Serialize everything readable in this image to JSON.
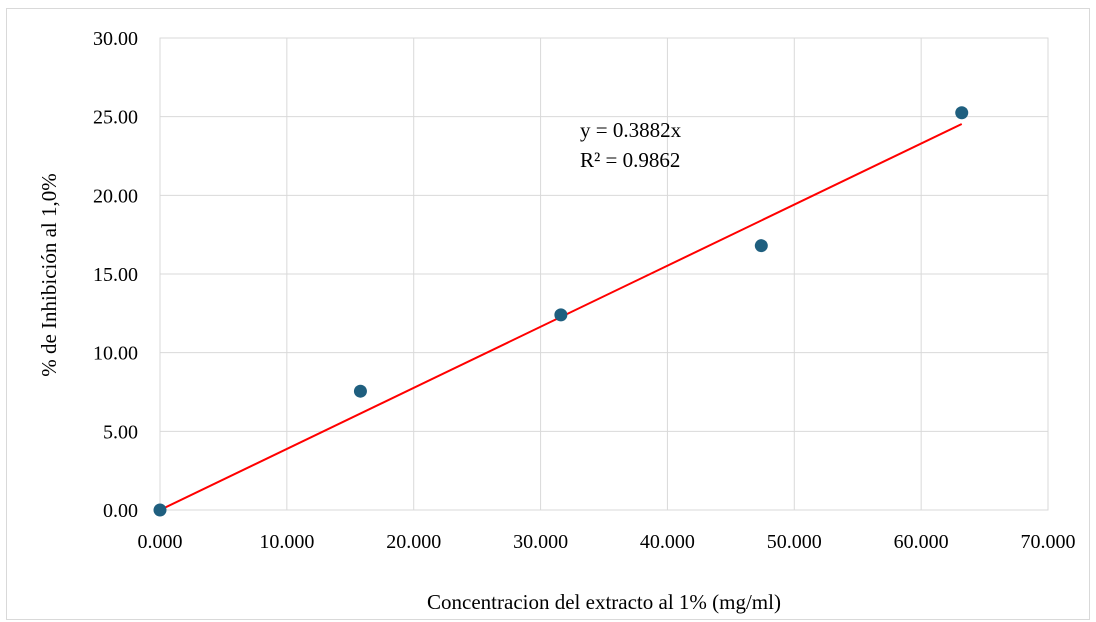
{
  "chart_data": {
    "type": "scatter",
    "title": "",
    "xlabel": "Concentracion del extracto al 1% (mg/ml)",
    "ylabel": "% de Inhibición al 1,0%",
    "xlim": [
      0,
      70
    ],
    "ylim": [
      0,
      30
    ],
    "x_ticks": [
      "0.000",
      "10.000",
      "20.000",
      "30.000",
      "40.000",
      "50.000",
      "60.000",
      "70.000"
    ],
    "y_ticks": [
      "0.00",
      "5.00",
      "10.00",
      "15.00",
      "20.00",
      "25.00",
      "30.00"
    ],
    "grid": true,
    "legend": "none",
    "series": [
      {
        "x": [
          0.0,
          15.8,
          31.6,
          47.4,
          63.2
        ],
        "y": [
          0.0,
          7.55,
          12.4,
          16.8,
          25.25
        ],
        "color": "#1f5f7f"
      }
    ],
    "trendline": {
      "type": "linear",
      "slope": 0.3882,
      "x_range": [
        0,
        63.2
      ],
      "color": "#ff0000",
      "equation": "y = 0.3882x",
      "r_squared": "R² = 0.9862"
    }
  }
}
